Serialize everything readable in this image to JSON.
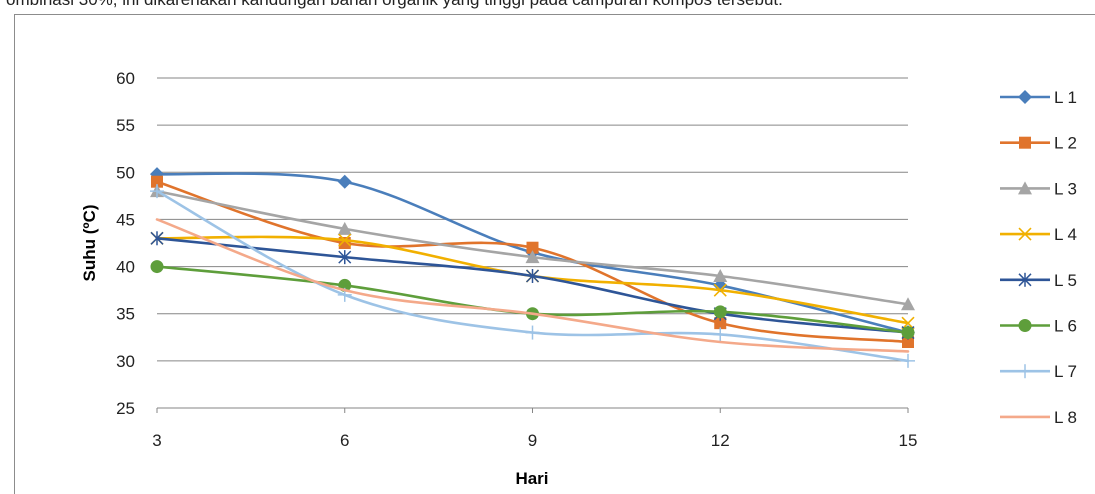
{
  "header_text": "ombinasi 30%, ini dikarenakan kandungan bahan organik yang tinggi pada campuran kompos tersebut.",
  "chart_data": {
    "type": "line",
    "title": "",
    "xlabel": "Hari",
    "ylabel": "Suhu (ºC)",
    "categories": [
      "3",
      "6",
      "9",
      "12",
      "15"
    ],
    "ylim": [
      25,
      60
    ],
    "yticks": [
      25,
      30,
      35,
      40,
      45,
      50,
      55,
      60
    ],
    "grid": true,
    "legend_position": "right",
    "smooth": true,
    "series": [
      {
        "name": "L 1",
        "color": "#4a7ebb",
        "marker": "diamond",
        "values": [
          49.8,
          49,
          41.5,
          38,
          33
        ]
      },
      {
        "name": "L 2",
        "color": "#e0742c",
        "marker": "square",
        "values": [
          49,
          42.5,
          42,
          34,
          32
        ]
      },
      {
        "name": "L 3",
        "color": "#a5a5a5",
        "marker": "triangle",
        "values": [
          48,
          44,
          41,
          39,
          36
        ]
      },
      {
        "name": "L 4",
        "color": "#f1b000",
        "marker": "x",
        "values": [
          43,
          42.8,
          39,
          37.5,
          34
        ]
      },
      {
        "name": "L 5",
        "color": "#2e5597",
        "marker": "star",
        "values": [
          43,
          41,
          39,
          35,
          33
        ]
      },
      {
        "name": "L 6",
        "color": "#5e9e3b",
        "marker": "circle",
        "values": [
          40,
          38,
          35,
          35.2,
          33
        ]
      },
      {
        "name": "L 7",
        "color": "#9dc3e6",
        "marker": "plus",
        "values": [
          48,
          37,
          33,
          32.8,
          30
        ]
      },
      {
        "name": "L 8",
        "color": "#f4a98a",
        "marker": "none",
        "values": [
          45,
          37.5,
          35,
          32,
          31
        ]
      }
    ]
  }
}
